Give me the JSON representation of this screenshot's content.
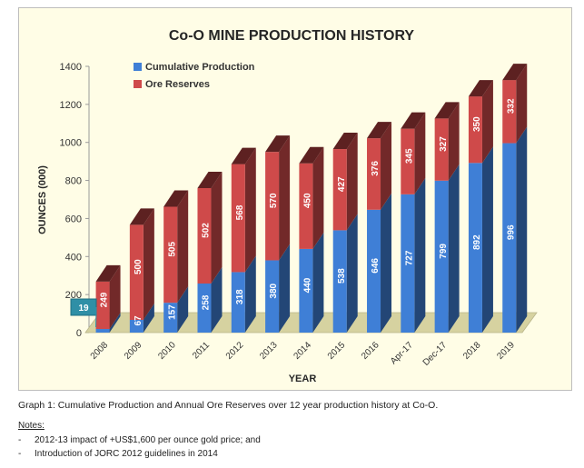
{
  "chart_data": {
    "type": "bar",
    "stacked": true,
    "title": "Co-O MINE PRODUCTION HISTORY",
    "xlabel": "YEAR",
    "ylabel": "OUNCES (000)",
    "ylim": [
      0,
      1400
    ],
    "yticks": [
      0,
      200,
      400,
      600,
      800,
      1000,
      1200,
      1400
    ],
    "categories": [
      "2008",
      "2009",
      "2010",
      "2011",
      "2012",
      "2013",
      "2014",
      "2015",
      "2016",
      "Apr-17",
      "Dec-17",
      "2018",
      "2019"
    ],
    "series": [
      {
        "name": "Cumulative Production",
        "color": "#3f7fd6",
        "values": [
          19,
          67,
          157,
          258,
          318,
          380,
          440,
          538,
          646,
          727,
          799,
          892,
          996
        ]
      },
      {
        "name": "Ore Reserves",
        "color": "#cf4a4a",
        "values": [
          249,
          500,
          505,
          502,
          568,
          570,
          450,
          427,
          376,
          345,
          327,
          350,
          332
        ]
      }
    ],
    "legend": "top-left"
  },
  "caption": "Graph 1: Cumulative Production and Annual Ore Reserves over 12 year production history at Co-O.",
  "notes_heading": "Notes:",
  "notes": [
    "2012-13 impact of +US$1,600 per ounce gold price; and",
    "Introduction of JORC 2012 guidelines in 2014"
  ],
  "note_bullet": "-"
}
